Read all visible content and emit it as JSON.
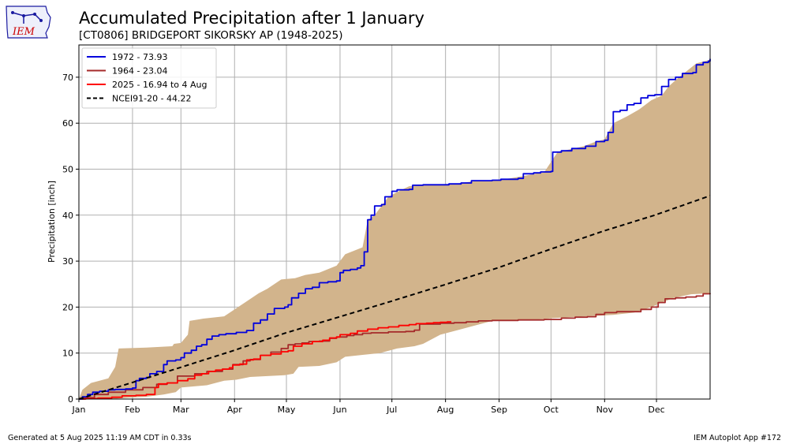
{
  "header": {
    "title": "Accumulated Precipitation after 1 January",
    "subtitle": "[CT0806] BRIDGEPORT SIKORSKY AP (1948-2025)",
    "logo_text": "IEM"
  },
  "footer": {
    "generated": "Generated at 5 Aug 2025 11:19 AM CDT in 0.33s",
    "app": "IEM Autoplot App #172"
  },
  "colors": {
    "band": "#d2b48c",
    "series_1972": "#0000dd",
    "series_1964": "#a52a2a",
    "series_2025": "#ff0000",
    "normal": "#000000",
    "grid": "#b0b0b0",
    "logo": "#1a1aa0",
    "logo_text": "#cc0000"
  },
  "chart_data": {
    "type": "line",
    "title": "Accumulated Precipitation after 1 January",
    "subtitle": "[CT0806] BRIDGEPORT SIKORSKY AP (1948-2025)",
    "xlabel": "",
    "ylabel": "Precipitation [inch]",
    "xlim": [
      1,
      366
    ],
    "ylim": [
      0,
      78
    ],
    "grid": true,
    "legend_position": "upper-left",
    "x_ticks": [
      {
        "label": "Jan",
        "day": 1
      },
      {
        "label": "Feb",
        "day": 32
      },
      {
        "label": "Mar",
        "day": 60
      },
      {
        "label": "Apr",
        "day": 91
      },
      {
        "label": "May",
        "day": 121
      },
      {
        "label": "Jun",
        "day": 152
      },
      {
        "label": "Jul",
        "day": 182
      },
      {
        "label": "Aug",
        "day": 213
      },
      {
        "label": "Sep",
        "day": 244
      },
      {
        "label": "Oct",
        "day": 274
      },
      {
        "label": "Nov",
        "day": 305
      },
      {
        "label": "Dec",
        "day": 335
      }
    ],
    "y_ticks": [
      0,
      10,
      20,
      30,
      40,
      50,
      60,
      70
    ],
    "range_band": {
      "upper": [
        [
          1,
          0
        ],
        [
          3,
          2
        ],
        [
          8,
          3.5
        ],
        [
          18,
          4.5
        ],
        [
          22,
          7
        ],
        [
          24,
          11
        ],
        [
          40,
          11.2
        ],
        [
          55,
          11.5
        ],
        [
          56,
          12
        ],
        [
          60,
          12.2
        ],
        [
          64,
          14
        ],
        [
          65,
          17
        ],
        [
          73,
          17.5
        ],
        [
          85,
          18
        ],
        [
          97,
          21
        ],
        [
          105,
          23
        ],
        [
          110,
          24
        ],
        [
          118,
          26
        ],
        [
          126,
          26.3
        ],
        [
          132,
          27
        ],
        [
          140,
          27.5
        ],
        [
          150,
          29
        ],
        [
          155,
          31.5
        ],
        [
          165,
          33
        ],
        [
          168,
          38.9
        ],
        [
          172,
          40
        ],
        [
          176,
          42
        ],
        [
          180,
          44
        ],
        [
          185,
          45
        ],
        [
          192,
          46.3
        ],
        [
          200,
          46.5
        ],
        [
          210,
          46.7
        ],
        [
          220,
          46.9
        ],
        [
          228,
          47.3
        ],
        [
          240,
          47.6
        ],
        [
          250,
          48
        ],
        [
          258,
          48.5
        ],
        [
          265,
          49
        ],
        [
          270,
          49.3
        ],
        [
          278,
          53.8
        ],
        [
          285,
          54.3
        ],
        [
          293,
          55
        ],
        [
          300,
          56
        ],
        [
          305,
          56.5
        ],
        [
          310,
          60
        ],
        [
          318,
          61.5
        ],
        [
          325,
          63
        ],
        [
          332,
          65
        ],
        [
          338,
          66
        ],
        [
          342,
          68
        ],
        [
          348,
          70
        ],
        [
          353,
          71.5
        ],
        [
          358,
          73
        ],
        [
          366,
          73.8
        ]
      ],
      "lower": [
        [
          1,
          0
        ],
        [
          20,
          0
        ],
        [
          30,
          0.3
        ],
        [
          40,
          0.5
        ],
        [
          50,
          1
        ],
        [
          57,
          1.5
        ],
        [
          60,
          2.5
        ],
        [
          75,
          3
        ],
        [
          85,
          4
        ],
        [
          92,
          4.2
        ],
        [
          100,
          4.8
        ],
        [
          110,
          5
        ],
        [
          120,
          5.2
        ],
        [
          125,
          5.5
        ],
        [
          128,
          7
        ],
        [
          140,
          7.2
        ],
        [
          150,
          8
        ],
        [
          155,
          9.2
        ],
        [
          165,
          9.6
        ],
        [
          175,
          10
        ],
        [
          185,
          11
        ],
        [
          195,
          11.5
        ],
        [
          200,
          12
        ],
        [
          210,
          14
        ],
        [
          220,
          15
        ],
        [
          230,
          16
        ],
        [
          240,
          17
        ],
        [
          250,
          17.1
        ],
        [
          260,
          17.2
        ],
        [
          270,
          17.4
        ],
        [
          275,
          17.6
        ],
        [
          280,
          17.7
        ],
        [
          290,
          17.9
        ],
        [
          300,
          18.1
        ],
        [
          310,
          18.3
        ],
        [
          322,
          18.8
        ],
        [
          328,
          19.5
        ],
        [
          332,
          20
        ],
        [
          338,
          21
        ],
        [
          345,
          22
        ],
        [
          355,
          22.8
        ],
        [
          366,
          23
        ]
      ]
    },
    "series": [
      {
        "name": "1972 - 73.93",
        "color": "#0000dd",
        "points": [
          [
            1,
            0
          ],
          [
            3,
            0.5
          ],
          [
            6,
            1
          ],
          [
            9,
            1.5
          ],
          [
            13,
            1.7
          ],
          [
            18,
            2
          ],
          [
            22,
            2.1
          ],
          [
            28,
            2.2
          ],
          [
            32,
            2.4
          ],
          [
            34,
            4
          ],
          [
            36,
            4.5
          ],
          [
            40,
            4.7
          ],
          [
            42,
            5.5
          ],
          [
            46,
            6
          ],
          [
            50,
            7.5
          ],
          [
            52,
            8.3
          ],
          [
            57,
            8.5
          ],
          [
            60,
            9
          ],
          [
            62,
            10
          ],
          [
            66,
            10.6
          ],
          [
            69,
            11.5
          ],
          [
            72,
            11.8
          ],
          [
            75,
            13
          ],
          [
            78,
            13.7
          ],
          [
            82,
            14
          ],
          [
            86,
            14.2
          ],
          [
            92,
            14.5
          ],
          [
            98,
            14.9
          ],
          [
            102,
            16.5
          ],
          [
            106,
            17.2
          ],
          [
            110,
            18.5
          ],
          [
            114,
            19.7
          ],
          [
            120,
            20
          ],
          [
            122,
            20.5
          ],
          [
            124,
            22
          ],
          [
            128,
            23
          ],
          [
            132,
            24
          ],
          [
            136,
            24.3
          ],
          [
            140,
            25.3
          ],
          [
            145,
            25.5
          ],
          [
            150,
            25.7
          ],
          [
            152,
            27.5
          ],
          [
            154,
            28
          ],
          [
            158,
            28.2
          ],
          [
            162,
            28.5
          ],
          [
            164,
            29
          ],
          [
            166,
            32
          ],
          [
            168,
            39
          ],
          [
            170,
            40
          ],
          [
            172,
            42
          ],
          [
            176,
            42.3
          ],
          [
            178,
            44
          ],
          [
            182,
            45.2
          ],
          [
            185,
            45.5
          ],
          [
            192,
            45.6
          ],
          [
            194,
            46.5
          ],
          [
            200,
            46.6
          ],
          [
            215,
            46.8
          ],
          [
            222,
            47
          ],
          [
            228,
            47.5
          ],
          [
            240,
            47.6
          ],
          [
            245,
            47.8
          ],
          [
            255,
            48
          ],
          [
            258,
            49
          ],
          [
            264,
            49.2
          ],
          [
            268,
            49.4
          ],
          [
            274,
            49.5
          ],
          [
            275,
            53.7
          ],
          [
            280,
            54
          ],
          [
            286,
            54.5
          ],
          [
            294,
            55
          ],
          [
            300,
            56
          ],
          [
            305,
            56.3
          ],
          [
            307,
            58
          ],
          [
            310,
            62.5
          ],
          [
            314,
            62.8
          ],
          [
            318,
            64
          ],
          [
            322,
            64.3
          ],
          [
            326,
            65.5
          ],
          [
            330,
            66
          ],
          [
            334,
            66.2
          ],
          [
            338,
            68
          ],
          [
            342,
            69.5
          ],
          [
            346,
            70
          ],
          [
            350,
            70.8
          ],
          [
            356,
            71
          ],
          [
            358,
            72.7
          ],
          [
            362,
            73.2
          ],
          [
            365,
            73.5
          ],
          [
            366,
            74
          ]
        ]
      },
      {
        "name": "1964 - 23.04",
        "color": "#a52a2a",
        "points": [
          [
            1,
            0
          ],
          [
            4,
            0.3
          ],
          [
            10,
            1
          ],
          [
            18,
            1.5
          ],
          [
            28,
            2
          ],
          [
            38,
            2.5
          ],
          [
            46,
            3.2
          ],
          [
            52,
            3.5
          ],
          [
            58,
            5
          ],
          [
            68,
            5.5
          ],
          [
            75,
            6
          ],
          [
            84,
            6.5
          ],
          [
            90,
            7.5
          ],
          [
            96,
            8.3
          ],
          [
            100,
            8.6
          ],
          [
            106,
            9.5
          ],
          [
            112,
            10.2
          ],
          [
            118,
            11
          ],
          [
            122,
            11.8
          ],
          [
            126,
            12
          ],
          [
            130,
            12.2
          ],
          [
            134,
            12.5
          ],
          [
            140,
            12.6
          ],
          [
            146,
            13.2
          ],
          [
            150,
            13.5
          ],
          [
            156,
            13.8
          ],
          [
            160,
            14
          ],
          [
            165,
            14.3
          ],
          [
            170,
            14.4
          ],
          [
            180,
            14.6
          ],
          [
            190,
            14.7
          ],
          [
            195,
            15
          ],
          [
            198,
            16.3
          ],
          [
            210,
            16.5
          ],
          [
            218,
            16.6
          ],
          [
            225,
            16.8
          ],
          [
            232,
            17
          ],
          [
            240,
            17.1
          ],
          [
            255,
            17.2
          ],
          [
            270,
            17.3
          ],
          [
            280,
            17.6
          ],
          [
            288,
            17.8
          ],
          [
            295,
            17.9
          ],
          [
            300,
            18.4
          ],
          [
            305,
            18.8
          ],
          [
            312,
            19
          ],
          [
            320,
            19
          ],
          [
            326,
            19.5
          ],
          [
            332,
            20
          ],
          [
            336,
            21
          ],
          [
            340,
            21.8
          ],
          [
            346,
            22
          ],
          [
            352,
            22.2
          ],
          [
            358,
            22.4
          ],
          [
            362,
            22.9
          ],
          [
            366,
            23.04
          ]
        ]
      },
      {
        "name": "2025 - 16.94 to 4 Aug",
        "color": "#ff0000",
        "points": [
          [
            1,
            0
          ],
          [
            5,
            0.1
          ],
          [
            12,
            0.2
          ],
          [
            20,
            0.4
          ],
          [
            26,
            0.7
          ],
          [
            34,
            0.8
          ],
          [
            40,
            1
          ],
          [
            45,
            2.5
          ],
          [
            47,
            3.3
          ],
          [
            52,
            3.5
          ],
          [
            58,
            4
          ],
          [
            64,
            4.4
          ],
          [
            68,
            5.2
          ],
          [
            72,
            5.5
          ],
          [
            76,
            6
          ],
          [
            80,
            6.3
          ],
          [
            84,
            6.5
          ],
          [
            88,
            6.8
          ],
          [
            90,
            7.4
          ],
          [
            94,
            7.6
          ],
          [
            98,
            8.5
          ],
          [
            102,
            8.7
          ],
          [
            106,
            9.5
          ],
          [
            112,
            9.8
          ],
          [
            118,
            10.3
          ],
          [
            122,
            10.5
          ],
          [
            125,
            11.5
          ],
          [
            130,
            12
          ],
          [
            136,
            12.5
          ],
          [
            142,
            12.8
          ],
          [
            146,
            13.3
          ],
          [
            150,
            13.5
          ],
          [
            152,
            14
          ],
          [
            158,
            14.3
          ],
          [
            162,
            14.8
          ],
          [
            168,
            15.2
          ],
          [
            174,
            15.5
          ],
          [
            180,
            15.7
          ],
          [
            186,
            16
          ],
          [
            192,
            16.2
          ],
          [
            196,
            16.4
          ],
          [
            202,
            16.5
          ],
          [
            206,
            16.6
          ],
          [
            210,
            16.7
          ],
          [
            214,
            16.8
          ],
          [
            216,
            16.94
          ]
        ]
      },
      {
        "name": "NCEI91-20 - 44.22",
        "color": "#000000",
        "dashed": true,
        "points": [
          [
            1,
            0
          ],
          [
            31,
            3.5
          ],
          [
            59,
            6.8
          ],
          [
            90,
            10.5
          ],
          [
            120,
            14.3
          ],
          [
            151,
            17.8
          ],
          [
            181,
            21.2
          ],
          [
            212,
            24.8
          ],
          [
            243,
            28.5
          ],
          [
            273,
            32.5
          ],
          [
            304,
            36.5
          ],
          [
            334,
            40
          ],
          [
            366,
            44.22
          ]
        ]
      }
    ]
  }
}
